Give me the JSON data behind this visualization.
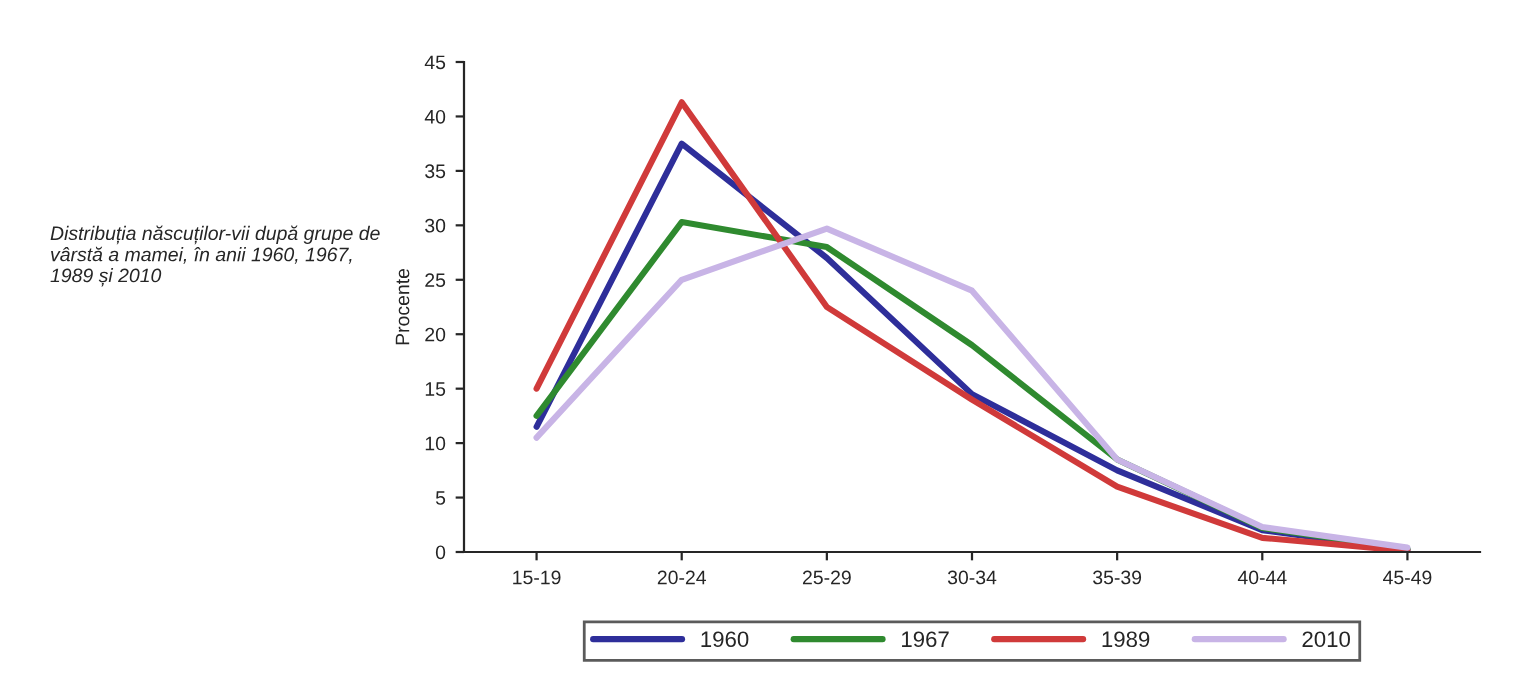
{
  "chart_data": {
    "type": "line",
    "annotations": [
      "Distribuția născuților-vii după grupe de vârstă a mamei, în anii 1960, 1967, 1989 și 2010"
    ],
    "ylabel": "Procente",
    "categories": [
      "15-19",
      "20-24",
      "25-29",
      "30-34",
      "35-39",
      "40-44",
      "45-49"
    ],
    "series": [
      {
        "name": "1960",
        "color": "#2e2e9a",
        "values": [
          11.5,
          37.5,
          27,
          14.5,
          7.5,
          2,
          0.2
        ]
      },
      {
        "name": "1967",
        "color": "#2f8a2f",
        "values": [
          12.5,
          30.3,
          28,
          19,
          8.5,
          2.2,
          0.3
        ]
      },
      {
        "name": "1989",
        "color": "#d03a3a",
        "values": [
          15,
          41.3,
          22.5,
          14,
          6,
          1.3,
          0.1
        ]
      },
      {
        "name": "2010",
        "color": "#c8b4e6",
        "values": [
          10.5,
          25,
          29.7,
          24,
          8.5,
          2.3,
          0.4
        ]
      }
    ],
    "ylim": [
      0,
      45
    ],
    "yticks": [
      0,
      5,
      10,
      15,
      20,
      25,
      30,
      35,
      40,
      45
    ],
    "grid": false,
    "legend": "bottom",
    "marker": "none",
    "line_style": "solid"
  }
}
